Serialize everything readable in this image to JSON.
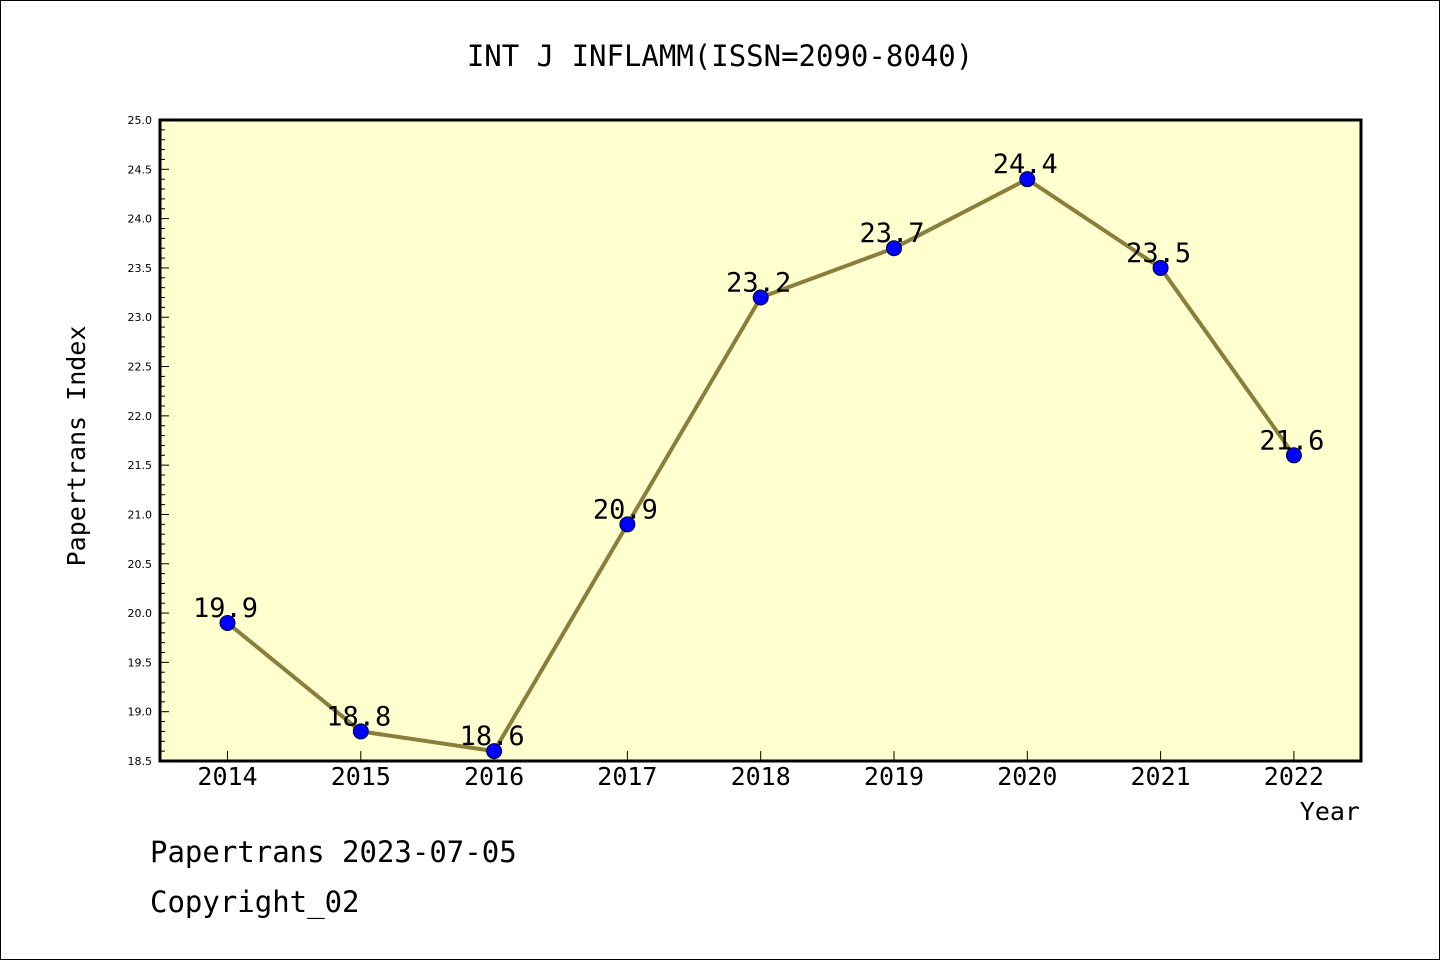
{
  "chart_data": {
    "type": "line",
    "title": "INT J INFLAMM(ISSN=2090-8040)",
    "xlabel": "Year",
    "ylabel": "Papertrans Index",
    "categories": [
      "2014",
      "2015",
      "2016",
      "2017",
      "2018",
      "2019",
      "2020",
      "2021",
      "2022"
    ],
    "series": [
      {
        "values": [
          19.9,
          18.8,
          18.6,
          20.9,
          23.2,
          23.7,
          24.4,
          23.5,
          21.6
        ]
      }
    ],
    "data_labels": [
      "19.9",
      "18.8",
      "18.6",
      "20.9",
      "23.2",
      "23.7",
      "24.4",
      "23.5",
      "21.6"
    ],
    "ylim": [
      18.5,
      25.0
    ],
    "y_ticks": [
      "18.5",
      "19.0",
      "19.5",
      "20.0",
      "20.5",
      "21.0",
      "21.5",
      "22.0",
      "22.5",
      "23.0",
      "23.5",
      "24.0",
      "24.5",
      "25.0"
    ],
    "grid": false,
    "legend": "none",
    "colors": {
      "plot_background": "#ffffd0",
      "line": "#8b7d3a",
      "marker": "#0000ff"
    }
  },
  "footer": {
    "line1": "Papertrans 2023-07-05",
    "line2": "Copyright_02"
  }
}
